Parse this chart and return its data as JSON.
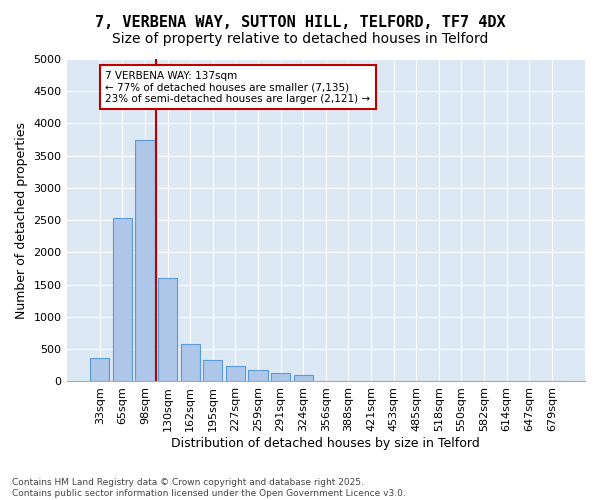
{
  "title_line1": "7, VERBENA WAY, SUTTON HILL, TELFORD, TF7 4DX",
  "title_line2": "Size of property relative to detached houses in Telford",
  "xlabel": "Distribution of detached houses by size in Telford",
  "ylabel": "Number of detached properties",
  "categories": [
    "33sqm",
    "65sqm",
    "98sqm",
    "130sqm",
    "162sqm",
    "195sqm",
    "227sqm",
    "259sqm",
    "291sqm",
    "324sqm",
    "356sqm",
    "388sqm",
    "421sqm",
    "453sqm",
    "485sqm",
    "518sqm",
    "550sqm",
    "582sqm",
    "614sqm",
    "647sqm",
    "679sqm"
  ],
  "values": [
    370,
    2530,
    3750,
    1600,
    580,
    330,
    240,
    170,
    130,
    100,
    0,
    0,
    0,
    0,
    0,
    0,
    0,
    0,
    0,
    0,
    0
  ],
  "bar_color": "#aec6e8",
  "bar_edge_color": "#5b9bd5",
  "vline_color": "#c00000",
  "vline_x": 2.5,
  "annotation_text": "7 VERBENA WAY: 137sqm\n← 77% of detached houses are smaller (7,135)\n23% of semi-detached houses are larger (2,121) →",
  "box_color": "#c00000",
  "ylim": [
    0,
    5000
  ],
  "yticks": [
    0,
    500,
    1000,
    1500,
    2000,
    2500,
    3000,
    3500,
    4000,
    4500,
    5000
  ],
  "bg_color": "#dde8f5",
  "footnote": "Contains HM Land Registry data © Crown copyright and database right 2025.\nContains public sector information licensed under the Open Government Licence v3.0.",
  "title_fontsize": 11,
  "subtitle_fontsize": 10,
  "axis_fontsize": 9,
  "tick_fontsize": 8,
  "annot_fontsize": 7.5
}
